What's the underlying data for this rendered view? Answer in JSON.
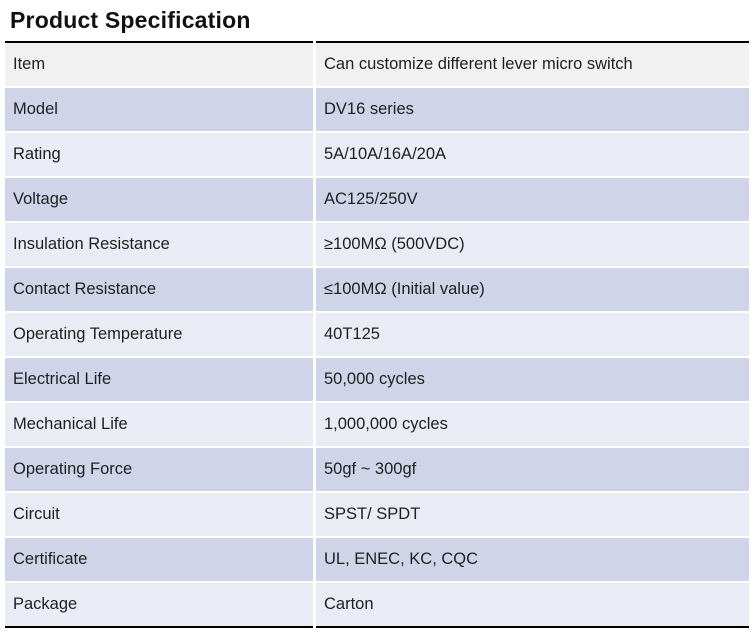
{
  "title": "Product Specification",
  "colors": {
    "header_row_bg": "#f1f1f1",
    "row_medium_bg": "#cfd4e8",
    "row_light_bg": "#e9ebf5",
    "rule": "#000000",
    "text": "#1f1f1f"
  },
  "table": {
    "columns": [
      "label",
      "value"
    ],
    "rows": [
      {
        "label": "Item",
        "value": "Can customize different lever micro switch"
      },
      {
        "label": "Model",
        "value": "DV16 series"
      },
      {
        "label": "Rating",
        "value": "5A/10A/16A/20A"
      },
      {
        "label": "Voltage",
        "value": "AC125/250V"
      },
      {
        "label": "Insulation Resistance",
        "value": "≥100MΩ (500VDC)"
      },
      {
        "label": "Contact Resistance",
        "value": "≤100MΩ (Initial value)"
      },
      {
        "label": "Operating Temperature",
        "value": "40T125"
      },
      {
        "label": "Electrical Life",
        "value": "50,000 cycles"
      },
      {
        "label": "Mechanical Life",
        "value": "1,000,000 cycles"
      },
      {
        "label": "Operating Force",
        "value": "50gf ~ 300gf"
      },
      {
        "label": "Circuit",
        "value": "SPST/ SPDT"
      },
      {
        "label": "Certificate",
        "value": "UL, ENEC, KC, CQC"
      },
      {
        "label": "Package",
        "value": "Carton"
      }
    ]
  }
}
